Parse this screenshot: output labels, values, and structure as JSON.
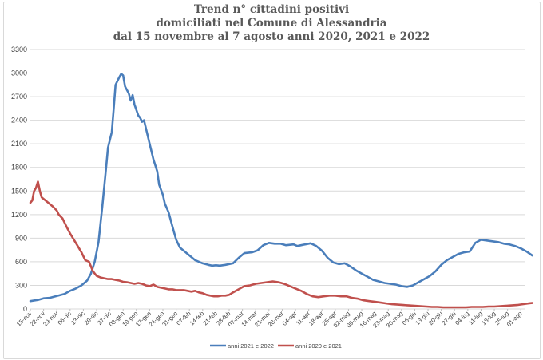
{
  "chart_data": {
    "type": "line",
    "title": [
      "Trend n° cittadini positivi",
      "domiciliati nel Comune di Alessandria",
      "dal 15 novembre al 7 agosto anni 2020, 2021 e 2022"
    ],
    "xlabel": "",
    "ylabel": "",
    "ylim": [
      0,
      3300
    ],
    "yticks": [
      0,
      300,
      600,
      900,
      1200,
      1500,
      1800,
      2100,
      2400,
      2700,
      3000,
      3300
    ],
    "grid": true,
    "legend_position": "bottom",
    "x_ticks": [
      "15-nov",
      "22-nov",
      "29-nov",
      "06-dic",
      "13-dic",
      "20-dic",
      "27-dic",
      "03-gen",
      "10-gen",
      "17-gen",
      "24-gen",
      "31-gen",
      "07-feb",
      "14-feb",
      "21-feb",
      "28-feb",
      "07-mar",
      "14-mar",
      "21-mar",
      "28-mar",
      "04-apr",
      "11-apr",
      "18-apr",
      "25-apr",
      "02-mag",
      "09-mag",
      "16-mag",
      "23-mag",
      "30-mag",
      "06-giu",
      "13-giu",
      "20-giu",
      "27-giu",
      "04-lug",
      "11-lug",
      "18-lug",
      "25-lug",
      "01-ago"
    ],
    "series": [
      {
        "name": "anni 2021 e 2022",
        "color": "#4a7ebb",
        "points": [
          [
            0,
            100
          ],
          [
            4,
            115
          ],
          [
            7,
            135
          ],
          [
            10,
            140
          ],
          [
            14,
            165
          ],
          [
            18,
            190
          ],
          [
            21,
            230
          ],
          [
            24,
            260
          ],
          [
            27,
            300
          ],
          [
            30,
            360
          ],
          [
            32,
            450
          ],
          [
            34,
            600
          ],
          [
            36,
            850
          ],
          [
            38,
            1300
          ],
          [
            40,
            1800
          ],
          [
            41,
            2050
          ],
          [
            43,
            2250
          ],
          [
            44,
            2550
          ],
          [
            45,
            2850
          ],
          [
            47,
            2950
          ],
          [
            48,
            2990
          ],
          [
            49,
            2970
          ],
          [
            50,
            2830
          ],
          [
            52,
            2740
          ],
          [
            53,
            2650
          ],
          [
            54,
            2720
          ],
          [
            55,
            2600
          ],
          [
            57,
            2460
          ],
          [
            58,
            2430
          ],
          [
            59,
            2380
          ],
          [
            60,
            2400
          ],
          [
            61,
            2300
          ],
          [
            63,
            2100
          ],
          [
            65,
            1900
          ],
          [
            67,
            1750
          ],
          [
            68,
            1580
          ],
          [
            70,
            1450
          ],
          [
            71,
            1340
          ],
          [
            73,
            1230
          ],
          [
            75,
            1050
          ],
          [
            77,
            880
          ],
          [
            79,
            780
          ],
          [
            81,
            740
          ],
          [
            84,
            680
          ],
          [
            87,
            620
          ],
          [
            91,
            580
          ],
          [
            94,
            560
          ],
          [
            96,
            550
          ],
          [
            98,
            555
          ],
          [
            100,
            550
          ],
          [
            103,
            560
          ],
          [
            107,
            580
          ],
          [
            110,
            650
          ],
          [
            113,
            710
          ],
          [
            117,
            720
          ],
          [
            120,
            745
          ],
          [
            123,
            810
          ],
          [
            126,
            840
          ],
          [
            129,
            830
          ],
          [
            132,
            830
          ],
          [
            135,
            810
          ],
          [
            139,
            820
          ],
          [
            141,
            800
          ],
          [
            143,
            810
          ],
          [
            147,
            830
          ],
          [
            148,
            835
          ],
          [
            151,
            800
          ],
          [
            154,
            740
          ],
          [
            157,
            650
          ],
          [
            160,
            590
          ],
          [
            163,
            570
          ],
          [
            166,
            580
          ],
          [
            169,
            540
          ],
          [
            172,
            490
          ],
          [
            175,
            450
          ],
          [
            178,
            410
          ],
          [
            181,
            370
          ],
          [
            184,
            350
          ],
          [
            187,
            330
          ],
          [
            190,
            320
          ],
          [
            193,
            310
          ],
          [
            196,
            290
          ],
          [
            199,
            280
          ],
          [
            202,
            300
          ],
          [
            205,
            340
          ],
          [
            208,
            380
          ],
          [
            211,
            420
          ],
          [
            214,
            480
          ],
          [
            217,
            560
          ],
          [
            220,
            620
          ],
          [
            223,
            660
          ],
          [
            226,
            700
          ],
          [
            229,
            720
          ],
          [
            232,
            730
          ],
          [
            235,
            840
          ],
          [
            238,
            880
          ],
          [
            241,
            870
          ],
          [
            244,
            860
          ],
          [
            247,
            850
          ],
          [
            250,
            830
          ],
          [
            253,
            820
          ],
          [
            256,
            800
          ],
          [
            259,
            770
          ],
          [
            262,
            730
          ],
          [
            265,
            680
          ]
        ]
      },
      {
        "name": "anni 2020 e 2021",
        "color": "#c0504d",
        "points": [
          [
            0,
            1350
          ],
          [
            1,
            1380
          ],
          [
            2,
            1500
          ],
          [
            3,
            1540
          ],
          [
            4,
            1620
          ],
          [
            5,
            1500
          ],
          [
            6,
            1420
          ],
          [
            8,
            1380
          ],
          [
            10,
            1340
          ],
          [
            12,
            1300
          ],
          [
            14,
            1250
          ],
          [
            15,
            1200
          ],
          [
            17,
            1150
          ],
          [
            19,
            1050
          ],
          [
            21,
            960
          ],
          [
            23,
            880
          ],
          [
            25,
            800
          ],
          [
            27,
            720
          ],
          [
            29,
            620
          ],
          [
            31,
            600
          ],
          [
            33,
            480
          ],
          [
            35,
            420
          ],
          [
            37,
            400
          ],
          [
            39,
            390
          ],
          [
            41,
            380
          ],
          [
            43,
            380
          ],
          [
            45,
            370
          ],
          [
            47,
            360
          ],
          [
            49,
            345
          ],
          [
            51,
            340
          ],
          [
            53,
            330
          ],
          [
            55,
            320
          ],
          [
            57,
            330
          ],
          [
            59,
            320
          ],
          [
            61,
            300
          ],
          [
            63,
            290
          ],
          [
            65,
            310
          ],
          [
            67,
            280
          ],
          [
            69,
            270
          ],
          [
            71,
            260
          ],
          [
            73,
            250
          ],
          [
            75,
            250
          ],
          [
            77,
            240
          ],
          [
            79,
            240
          ],
          [
            81,
            240
          ],
          [
            83,
            230
          ],
          [
            85,
            220
          ],
          [
            87,
            230
          ],
          [
            89,
            210
          ],
          [
            91,
            200
          ],
          [
            93,
            180
          ],
          [
            95,
            170
          ],
          [
            97,
            160
          ],
          [
            99,
            160
          ],
          [
            101,
            170
          ],
          [
            103,
            170
          ],
          [
            105,
            180
          ],
          [
            107,
            210
          ],
          [
            110,
            250
          ],
          [
            113,
            290
          ],
          [
            116,
            300
          ],
          [
            119,
            320
          ],
          [
            122,
            330
          ],
          [
            125,
            340
          ],
          [
            128,
            350
          ],
          [
            131,
            340
          ],
          [
            134,
            320
          ],
          [
            137,
            290
          ],
          [
            140,
            260
          ],
          [
            143,
            230
          ],
          [
            146,
            190
          ],
          [
            149,
            160
          ],
          [
            152,
            150
          ],
          [
            155,
            160
          ],
          [
            158,
            170
          ],
          [
            161,
            170
          ],
          [
            164,
            160
          ],
          [
            167,
            160
          ],
          [
            170,
            140
          ],
          [
            173,
            130
          ],
          [
            176,
            110
          ],
          [
            179,
            100
          ],
          [
            182,
            90
          ],
          [
            185,
            80
          ],
          [
            188,
            70
          ],
          [
            191,
            60
          ],
          [
            194,
            55
          ],
          [
            197,
            50
          ],
          [
            200,
            45
          ],
          [
            203,
            40
          ],
          [
            206,
            35
          ],
          [
            209,
            30
          ],
          [
            212,
            25
          ],
          [
            215,
            25
          ],
          [
            218,
            20
          ],
          [
            221,
            20
          ],
          [
            224,
            20
          ],
          [
            227,
            20
          ],
          [
            230,
            20
          ],
          [
            233,
            25
          ],
          [
            236,
            25
          ],
          [
            239,
            25
          ],
          [
            242,
            30
          ],
          [
            245,
            30
          ],
          [
            248,
            35
          ],
          [
            251,
            40
          ],
          [
            254,
            45
          ],
          [
            257,
            50
          ],
          [
            260,
            60
          ],
          [
            263,
            70
          ],
          [
            265,
            75
          ]
        ]
      }
    ]
  }
}
